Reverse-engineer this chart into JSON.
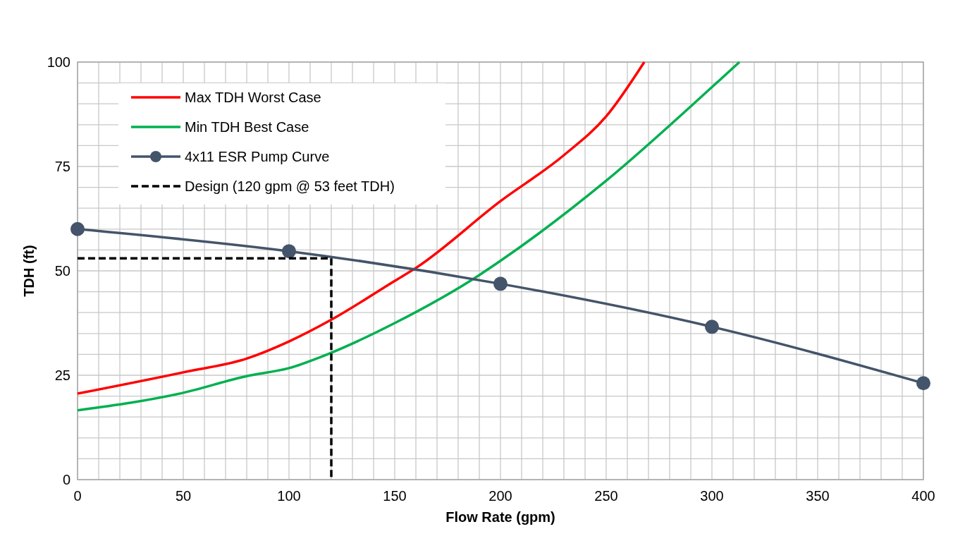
{
  "chart_data": {
    "type": "line",
    "xlabel": "Flow Rate (gpm)",
    "ylabel": "TDH (ft)",
    "xlim": [
      0,
      400
    ],
    "ylim": [
      0,
      100
    ],
    "xticks": [
      0,
      {
        "value": 10,
        "label": null
      },
      {
        "value": 20,
        "label": null
      },
      {
        "value": 30,
        "label": null
      },
      {
        "value": 40,
        "label": null
      },
      50,
      {
        "value": 60,
        "label": null
      },
      {
        "value": 70,
        "label": null
      },
      {
        "value": 80,
        "label": null
      },
      {
        "value": 90,
        "label": null
      },
      100,
      {
        "value": 110,
        "label": null
      },
      {
        "value": 120,
        "label": null
      },
      {
        "value": 130,
        "label": null
      },
      {
        "value": 140,
        "label": null
      },
      150,
      {
        "value": 160,
        "label": null
      },
      {
        "value": 170,
        "label": null
      },
      {
        "value": 180,
        "label": null
      },
      {
        "value": 190,
        "label": null
      },
      200,
      {
        "value": 210,
        "label": null
      },
      {
        "value": 220,
        "label": null
      },
      {
        "value": 230,
        "label": null
      },
      {
        "value": 240,
        "label": null
      },
      250,
      {
        "value": 260,
        "label": null
      },
      {
        "value": 270,
        "label": null
      },
      {
        "value": 280,
        "label": null
      },
      {
        "value": 290,
        "label": null
      },
      300,
      {
        "value": 310,
        "label": null
      },
      {
        "value": 320,
        "label": null
      },
      {
        "value": 330,
        "label": null
      },
      {
        "value": 340,
        "label": null
      },
      350,
      {
        "value": 360,
        "label": null
      },
      {
        "value": 370,
        "label": null
      },
      {
        "value": 380,
        "label": null
      },
      {
        "value": 390,
        "label": null
      },
      400
    ],
    "yticks": [
      0,
      {
        "value": 5,
        "label": null
      },
      {
        "value": 10,
        "label": null
      },
      {
        "value": 15,
        "label": null
      },
      {
        "value": 20,
        "label": null
      },
      25,
      {
        "value": 30,
        "label": null
      },
      {
        "value": 35,
        "label": null
      },
      {
        "value": 40,
        "label": null
      },
      {
        "value": 45,
        "label": null
      },
      50,
      {
        "value": 55,
        "label": null
      },
      {
        "value": 60,
        "label": null
      },
      {
        "value": 65,
        "label": null
      },
      {
        "value": 70,
        "label": null
      },
      75,
      {
        "value": 80,
        "label": null
      },
      {
        "value": 85,
        "label": null
      },
      {
        "value": 90,
        "label": null
      },
      {
        "value": 95,
        "label": null
      },
      100
    ],
    "grid": true,
    "legend": "top left",
    "series": [
      {
        "name": "Max TDH Worst Case",
        "color": "#ff0000",
        "marker": "none",
        "x": [
          0,
          50,
          80,
          100,
          120,
          150,
          160,
          200,
          230,
          250,
          268
        ],
        "values": [
          20.6,
          25.7,
          29,
          33.1,
          38.3,
          47.6,
          50.7,
          66.7,
          77.7,
          87,
          100
        ]
      },
      {
        "name": "Min TDH Best Case",
        "color": "#00b050",
        "marker": "none",
        "x": [
          0,
          50,
          80,
          100,
          120,
          150,
          190,
          200,
          250,
          300,
          313
        ],
        "values": [
          16.6,
          20.8,
          24.8,
          26.7,
          30.4,
          37.5,
          49,
          52.4,
          71.6,
          94,
          100
        ]
      },
      {
        "name": "4x11 ESR Pump Curve",
        "color": "#44546a",
        "marker": "circle",
        "x": [
          0,
          100,
          200,
          300,
          400
        ],
        "values": [
          60,
          54.7,
          46.9,
          36.6,
          23.1
        ]
      },
      {
        "name": "Design (120 gpm @ 53 feet TDH)",
        "color": "#000000",
        "marker": "none",
        "line_style": "dashed",
        "x": [
          0,
          120,
          120
        ],
        "values": [
          53,
          53,
          0
        ]
      }
    ]
  }
}
